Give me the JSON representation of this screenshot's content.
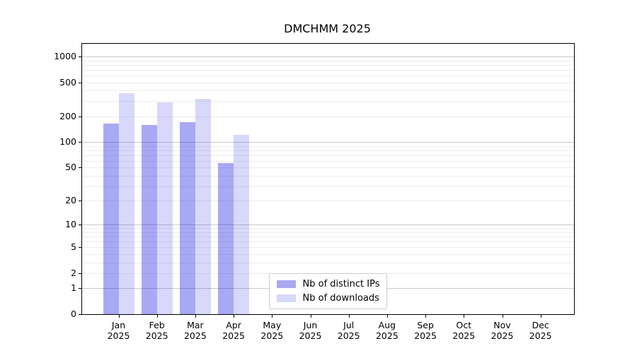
{
  "chart_data": {
    "type": "bar",
    "title": "DMCHMM 2025",
    "year": "2025",
    "categories": [
      "Jan",
      "Feb",
      "Mar",
      "Apr",
      "May",
      "Jun",
      "Jul",
      "Aug",
      "Sep",
      "Oct",
      "Nov",
      "Dec"
    ],
    "series": [
      {
        "name": "Nb of distinct IPs",
        "color": "rgba(10,10,220,0.35)",
        "values": [
          165,
          159,
          172,
          56,
          0,
          0,
          0,
          0,
          0,
          0,
          0,
          0
        ]
      },
      {
        "name": "Nb of downloads",
        "color": "rgba(10,10,220,0.16)",
        "values": [
          372,
          291,
          319,
          121,
          0,
          0,
          0,
          0,
          0,
          0,
          0,
          0
        ]
      }
    ],
    "yscale": "log1p",
    "ylim": [
      0,
      1405
    ],
    "yticks": [
      0,
      1,
      2,
      5,
      10,
      20,
      50,
      100,
      200,
      500,
      1000
    ],
    "legend_position": "lower center",
    "grid": true
  },
  "colors": {
    "background": "#ffffff",
    "axis": "#000000",
    "major_grid": "#c9c9c9",
    "minor_grid": "#ececec",
    "legend_border": "#cccccc"
  }
}
